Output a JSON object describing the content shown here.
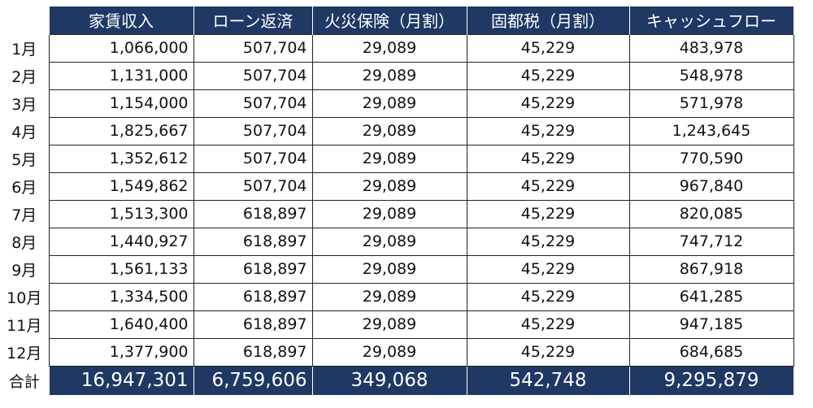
{
  "headers": [
    "家賃収入",
    "ローン返済",
    "火災保険（月割）",
    "固都税（月割）",
    "キャッシュフロー"
  ],
  "rows": [
    {
      "label": "1月",
      "cells": [
        "1,066,000",
        "507,704",
        "29,089",
        "45,229",
        "483,978"
      ]
    },
    {
      "label": "2月",
      "cells": [
        "1,131,000",
        "507,704",
        "29,089",
        "45,229",
        "548,978"
      ]
    },
    {
      "label": "3月",
      "cells": [
        "1,154,000",
        "507,704",
        "29,089",
        "45,229",
        "571,978"
      ]
    },
    {
      "label": "4月",
      "cells": [
        "1,825,667",
        "507,704",
        "29,089",
        "45,229",
        "1,243,645"
      ]
    },
    {
      "label": "5月",
      "cells": [
        "1,352,612",
        "507,704",
        "29,089",
        "45,229",
        "770,590"
      ]
    },
    {
      "label": "6月",
      "cells": [
        "1,549,862",
        "507,704",
        "29,089",
        "45,229",
        "967,840"
      ]
    },
    {
      "label": "7月",
      "cells": [
        "1,513,300",
        "618,897",
        "29,089",
        "45,229",
        "820,085"
      ]
    },
    {
      "label": "8月",
      "cells": [
        "1,440,927",
        "618,897",
        "29,089",
        "45,229",
        "747,712"
      ]
    },
    {
      "label": "9月",
      "cells": [
        "1,561,133",
        "618,897",
        "29,089",
        "45,229",
        "867,918"
      ]
    },
    {
      "label": "10月",
      "cells": [
        "1,334,500",
        "618,897",
        "29,089",
        "45,229",
        "641,285"
      ]
    },
    {
      "label": "11月",
      "cells": [
        "1,640,400",
        "618,897",
        "29,089",
        "45,229",
        "947,185"
      ]
    },
    {
      "label": "12月",
      "cells": [
        "1,377,900",
        "618,897",
        "29,089",
        "45,229",
        "684,685"
      ]
    }
  ],
  "total": {
    "label": "合計",
    "cells": [
      "16,947,301",
      "6,759,606",
      "349,068",
      "542,748",
      "9,295,879"
    ]
  },
  "colors": {
    "header_bg": "#1f3864",
    "header_text": "#ffffff",
    "grid": "#222222"
  }
}
